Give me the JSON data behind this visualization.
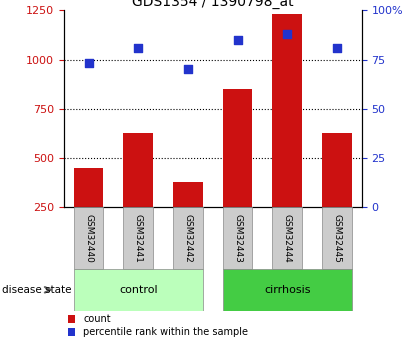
{
  "title": "GDS1354 / 1390798_at",
  "samples": [
    "GSM32440",
    "GSM32441",
    "GSM32442",
    "GSM32443",
    "GSM32444",
    "GSM32445"
  ],
  "count_values": [
    450,
    625,
    375,
    850,
    1230,
    625
  ],
  "percentile_values": [
    73,
    81,
    70,
    85,
    88,
    81
  ],
  "left_ylim": [
    250,
    1250
  ],
  "right_ylim": [
    0,
    100
  ],
  "left_yticks": [
    250,
    500,
    750,
    1000,
    1250
  ],
  "right_yticks": [
    0,
    25,
    50,
    75,
    100
  ],
  "right_yticklabels": [
    "0",
    "25",
    "50",
    "75",
    "100%"
  ],
  "bar_color": "#cc1111",
  "dot_color": "#2233cc",
  "control_color": "#bbffbb",
  "cirrhosis_color": "#44cc44",
  "sample_box_color": "#cccccc",
  "control_samples": [
    0,
    1,
    2
  ],
  "cirrhosis_samples": [
    3,
    4,
    5
  ],
  "control_label": "control",
  "cirrhosis_label": "cirrhosis",
  "disease_state_label": "disease state",
  "legend_count": "count",
  "legend_percentile": "percentile rank within the sample",
  "dotted_grid_values": [
    500,
    750,
    1000
  ],
  "bar_width": 0.6,
  "title_fontsize": 10
}
